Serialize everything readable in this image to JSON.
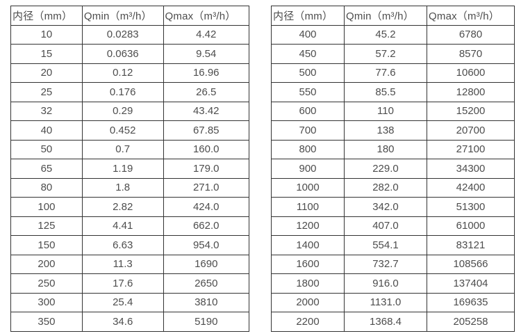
{
  "colors": {
    "text": "#4d4d4d",
    "border": "#333333",
    "background": "#ffffff"
  },
  "headers": [
    "内径（mm）",
    "Qmin（m³/h）",
    "Qmax（m³/h）"
  ],
  "left_table": {
    "rows": [
      [
        "10",
        "0.0283",
        "4.42"
      ],
      [
        "15",
        "0.0636",
        "9.54"
      ],
      [
        "20",
        "0.12",
        "16.96"
      ],
      [
        "25",
        "0.176",
        "26.5"
      ],
      [
        "32",
        "0.29",
        "43.42"
      ],
      [
        "40",
        "0.452",
        "67.85"
      ],
      [
        "50",
        "0.7",
        "160.0"
      ],
      [
        "65",
        "1.19",
        "179.0"
      ],
      [
        "80",
        "1.8",
        "271.0"
      ],
      [
        "100",
        "2.82",
        "424.0"
      ],
      [
        "125",
        "4.41",
        "662.0"
      ],
      [
        "150",
        "6.63",
        "954.0"
      ],
      [
        "200",
        "11.3",
        "1690"
      ],
      [
        "250",
        "17.6",
        "2650"
      ],
      [
        "300",
        "25.4",
        "3810"
      ],
      [
        "350",
        "34.6",
        "5190"
      ]
    ]
  },
  "right_table": {
    "rows": [
      [
        "400",
        "45.2",
        "6780"
      ],
      [
        "450",
        "57.2",
        "8570"
      ],
      [
        "500",
        "77.6",
        "10600"
      ],
      [
        "550",
        "85.5",
        "12800"
      ],
      [
        "600",
        "110",
        "15200"
      ],
      [
        "700",
        "138",
        "20700"
      ],
      [
        "800",
        "180",
        "27100"
      ],
      [
        "900",
        "229.0",
        "34300"
      ],
      [
        "1000",
        "282.0",
        "42400"
      ],
      [
        "1100",
        "342.0",
        "51300"
      ],
      [
        "1200",
        "407.0",
        "61000"
      ],
      [
        "1400",
        "554.1",
        "83121"
      ],
      [
        "1600",
        "732.7",
        "108566"
      ],
      [
        "1800",
        "916.0",
        "137404"
      ],
      [
        "2000",
        "1131.0",
        "169635"
      ],
      [
        "2200",
        "1368.4",
        "205258"
      ]
    ]
  }
}
